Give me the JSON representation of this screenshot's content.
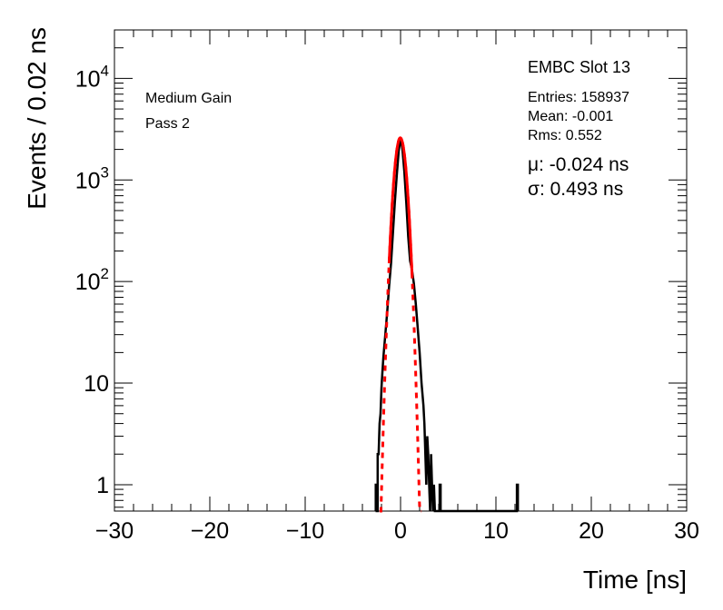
{
  "chart_data": {
    "type": "line",
    "xlabel": "Time [ns]",
    "ylabel": "Events / 0.02 ns",
    "xlim": [
      -30,
      30
    ],
    "ylim": [
      0.55,
      30000
    ],
    "yscale": "log",
    "grid": false,
    "x_ticks": [
      -30,
      -20,
      -10,
      0,
      10,
      20,
      30
    ],
    "x_tick_labels": [
      "−30",
      "−20",
      "−10",
      "0",
      "10",
      "20",
      "30"
    ],
    "y_major_ticks": [
      1,
      10,
      100,
      1000,
      10000
    ],
    "y_tick_labels": [
      {
        "value": 1,
        "base": "1",
        "exp": ""
      },
      {
        "value": 10,
        "base": "10",
        "exp": ""
      },
      {
        "value": 100,
        "base": "10",
        "exp": "2"
      },
      {
        "value": 1000,
        "base": "10",
        "exp": "3"
      },
      {
        "value": 10000,
        "base": "10",
        "exp": "4"
      }
    ],
    "annotations": {
      "left": [
        "Medium Gain",
        "Pass 2"
      ],
      "title": "EMBC Slot 13",
      "stats": [
        "Entries: 158937",
        "Mean: -0.001",
        "Rms: 0.552"
      ],
      "fit": [
        "μ: -0.024 ns",
        "σ: 0.493 ns"
      ]
    },
    "series": [
      {
        "kind": "histogram",
        "color": "#000000",
        "points": [
          [
            -2.6,
            0.55
          ],
          [
            -2.6,
            1
          ],
          [
            -2.5,
            1
          ],
          [
            -2.5,
            0.55
          ],
          [
            -2.4,
            0.55
          ],
          [
            -2.4,
            2
          ],
          [
            -2.3,
            2
          ],
          [
            -2.2,
            4
          ],
          [
            -2.1,
            5
          ],
          [
            -2.0,
            9
          ],
          [
            -1.9,
            13
          ],
          [
            -1.8,
            18
          ],
          [
            -1.6,
            30
          ],
          [
            -1.4,
            50
          ],
          [
            -1.2,
            90
          ],
          [
            -1.0,
            150
          ],
          [
            -0.8,
            300
          ],
          [
            -0.6,
            600
          ],
          [
            -0.4,
            1100
          ],
          [
            -0.2,
            1900
          ],
          [
            0.0,
            2600
          ],
          [
            0.2,
            2000
          ],
          [
            0.4,
            1200
          ],
          [
            0.6,
            600
          ],
          [
            0.8,
            280
          ],
          [
            1.0,
            160
          ],
          [
            1.2,
            130
          ],
          [
            1.4,
            95
          ],
          [
            1.6,
            60
          ],
          [
            1.8,
            35
          ],
          [
            2.0,
            20
          ],
          [
            2.2,
            10
          ],
          [
            2.4,
            6
          ],
          [
            2.5,
            4
          ],
          [
            2.6,
            2
          ],
          [
            2.7,
            1
          ],
          [
            2.8,
            3
          ],
          [
            2.9,
            2
          ],
          [
            3.0,
            1
          ],
          [
            3.1,
            0.55
          ],
          [
            3.2,
            2
          ],
          [
            3.3,
            1
          ],
          [
            3.4,
            0.55
          ],
          [
            3.5,
            1
          ],
          [
            3.6,
            0.55
          ],
          [
            4.1,
            0.55
          ],
          [
            4.1,
            1
          ],
          [
            4.2,
            1
          ],
          [
            4.2,
            0.55
          ],
          [
            12.2,
            0.55
          ],
          [
            12.2,
            1
          ],
          [
            12.3,
            1
          ],
          [
            12.3,
            0.55
          ]
        ]
      },
      {
        "kind": "fit",
        "name": "",
        "color": "#ff0000",
        "function": "gauss",
        "amplitude": 2600,
        "mu": -0.024,
        "sigma": 0.493,
        "solid_range": [
          -1.2,
          1.2
        ],
        "dashed_range": [
          -2.2,
          2.2
        ]
      }
    ]
  }
}
